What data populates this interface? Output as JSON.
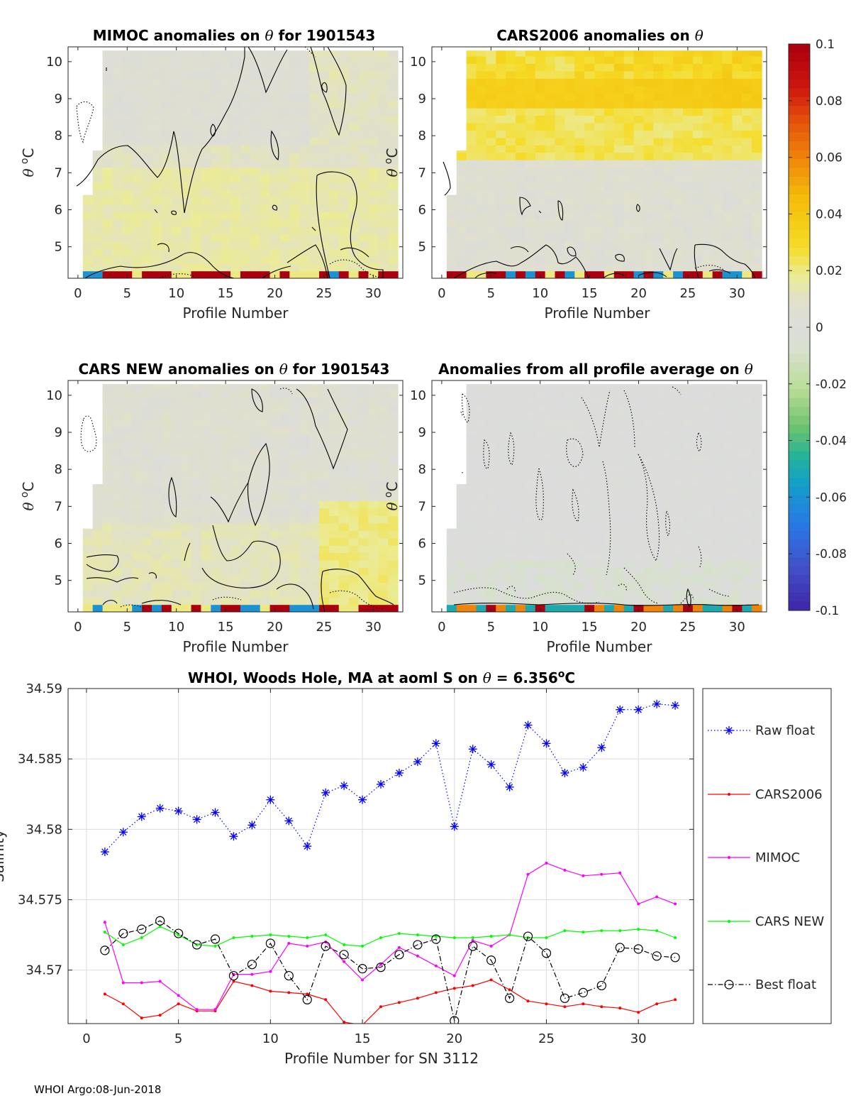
{
  "footer": "WHOI Argo:08-Jun-2018",
  "colorbar": {
    "min": -0.1,
    "max": 0.1,
    "tick_values": [
      0.1,
      0.08,
      0.06,
      0.04,
      0.02,
      0,
      -0.02,
      -0.04,
      -0.06,
      -0.08,
      -0.1
    ],
    "tick_labels": [
      "0.1",
      "0.08",
      "0.06",
      "0.04",
      "0.02",
      "0",
      "-0.02",
      "-0.04",
      "-0.06",
      "-0.08",
      "-0.1"
    ]
  },
  "panels": [
    {
      "title_pre": "MIMOC anomalies on ",
      "title_sym": "θ",
      "title_post": "  for 1901543",
      "xlabel": "Profile Number",
      "ylabel_sym": "θ",
      "ylabel_unit": "C",
      "ylabel_degree": "o",
      "xlim": [
        -1,
        33
      ],
      "ylim": [
        4.15,
        10.4
      ],
      "xticks": [
        0,
        5,
        10,
        15,
        20,
        25,
        30
      ],
      "yticks": [
        5,
        6,
        7,
        8,
        9,
        10
      ]
    },
    {
      "title_pre": "CARS2006 anomalies on ",
      "title_sym": "θ",
      "title_post": "",
      "xlabel": "Profile Number",
      "ylabel_sym": "θ",
      "ylabel_unit": "C",
      "ylabel_degree": "o",
      "xlim": [
        -1,
        33
      ],
      "ylim": [
        4.15,
        10.4
      ],
      "xticks": [
        0,
        5,
        10,
        15,
        20,
        25,
        30
      ],
      "yticks": [
        5,
        6,
        7,
        8,
        9,
        10
      ]
    },
    {
      "title_pre": "CARS NEW anomalies on ",
      "title_sym": "θ",
      "title_post": " for 1901543",
      "xlabel": "Profile Number",
      "ylabel_sym": "θ",
      "ylabel_unit": "C",
      "ylabel_degree": "o",
      "xlim": [
        -1,
        33
      ],
      "ylim": [
        4.15,
        10.4
      ],
      "xticks": [
        0,
        5,
        10,
        15,
        20,
        25,
        30
      ],
      "yticks": [
        5,
        6,
        7,
        8,
        9,
        10
      ]
    },
    {
      "title_pre": "Anomalies from all profile average on ",
      "title_sym": "θ",
      "title_post": "",
      "xlabel": "Profile Number",
      "ylabel_sym": "θ",
      "ylabel_unit": "C",
      "ylabel_degree": "o",
      "xlim": [
        -1,
        33
      ],
      "ylim": [
        4.15,
        10.4
      ],
      "xticks": [
        0,
        5,
        10,
        15,
        20,
        25,
        30
      ],
      "yticks": [
        5,
        6,
        7,
        8,
        9,
        10
      ]
    }
  ],
  "chart_data": [
    {
      "type": "heatmap",
      "title": "MIMOC anomalies on θ  for 1901543",
      "xlabel": "Profile Number",
      "ylabel": "θ °C",
      "x_range": [
        1,
        32
      ],
      "y_range": [
        4.2,
        10.3
      ],
      "colorscale_range": [
        -0.1,
        0.1
      ],
      "summary": {
        "background_anomaly": 0.01,
        "deep_layer_anomaly": 0.015,
        "bottom_band_max": 0.1
      }
    },
    {
      "type": "heatmap",
      "title": "CARS2006 anomalies on θ",
      "xlabel": "Profile Number",
      "ylabel": "θ °C",
      "x_range": [
        1,
        32
      ],
      "y_range": [
        4.2,
        10.3
      ],
      "colorscale_range": [
        -0.1,
        0.1
      ],
      "summary": {
        "upper_layer_anomaly": 0.035,
        "lower_layer_anomaly": 0.005,
        "bottom_band_max": 0.1
      }
    },
    {
      "type": "heatmap",
      "title": "CARS NEW anomalies on θ for 1901543",
      "xlabel": "Profile Number",
      "ylabel": "θ °C",
      "x_range": [
        1,
        32
      ],
      "y_range": [
        4.2,
        10.3
      ],
      "colorscale_range": [
        -0.1,
        0.1
      ],
      "summary": {
        "background_anomaly": 0.005,
        "deep_layer_anomaly": 0.012,
        "bottom_band_max": 0.1
      }
    },
    {
      "type": "heatmap",
      "title": "Anomalies from all profile average on θ",
      "xlabel": "Profile Number",
      "ylabel": "θ °C",
      "x_range": [
        1,
        32
      ],
      "y_range": [
        4.2,
        10.3
      ],
      "colorscale_range": [
        -0.1,
        0.1
      ],
      "summary": {
        "background_anomaly": 0.0,
        "bottom_band_min": -0.03,
        "bottom_band_max": 0.1
      }
    },
    {
      "type": "line",
      "title_pre": "WHOI, Woods Hole, MA at aoml S on ",
      "title_sym": "θ",
      "title_eq": " = 6.356",
      "title_deg": "o",
      "title_unit": "C",
      "title": "WHOI, Woods Hole, MA at aoml S on θ = 6.356°C",
      "xlabel": "Profile Number for SN 3112",
      "ylabel": "Salinity",
      "xlim": [
        -1,
        33
      ],
      "ylim": [
        34.5662,
        34.59
      ],
      "xticks": [
        0,
        5,
        10,
        15,
        20,
        25,
        30
      ],
      "yticks": [
        34.57,
        34.575,
        34.58,
        34.585,
        34.59
      ],
      "ytick_labels": [
        "34.57",
        "34.575",
        "34.58",
        "34.585",
        "34.59"
      ],
      "grid": true,
      "legend_position": "right",
      "x": [
        1,
        2,
        3,
        4,
        5,
        6,
        7,
        8,
        9,
        10,
        11,
        12,
        13,
        14,
        15,
        16,
        17,
        18,
        19,
        20,
        21,
        22,
        23,
        24,
        25,
        26,
        27,
        28,
        29,
        30,
        31,
        32
      ],
      "series": [
        {
          "name": "Raw float",
          "color": "#0000ff",
          "marker": "star",
          "dash": "dotted",
          "values": [
            34.5784,
            34.5798,
            34.5809,
            34.5815,
            34.5813,
            34.5807,
            34.5812,
            34.5795,
            34.5803,
            34.5821,
            34.5806,
            34.5788,
            34.5826,
            34.5831,
            34.5821,
            34.5832,
            34.584,
            34.5848,
            34.5861,
            34.5802,
            34.5857,
            34.5846,
            34.583,
            34.5874,
            34.5861,
            34.584,
            34.5844,
            34.5858,
            34.5885,
            34.5885,
            34.5889,
            34.5888
          ]
        },
        {
          "name": "CARS2006",
          "color": "#ff0000",
          "marker": "dot",
          "dash": "solid",
          "values": [
            34.5683,
            34.5676,
            34.5666,
            34.5668,
            34.5676,
            34.5671,
            34.5671,
            34.5692,
            34.5689,
            34.5685,
            34.5684,
            34.5683,
            34.5679,
            34.5663,
            34.5661,
            34.5674,
            34.5677,
            34.568,
            34.5684,
            34.5687,
            34.5689,
            34.5693,
            34.5686,
            34.5678,
            34.5676,
            34.5674,
            34.5676,
            34.5674,
            34.5673,
            34.567,
            34.5676,
            34.5679
          ]
        },
        {
          "name": "MIMOC",
          "color": "#ff00ff",
          "marker": "dot",
          "dash": "solid",
          "values": [
            34.5734,
            34.5691,
            34.5691,
            34.5692,
            34.5682,
            34.5672,
            34.5672,
            34.5697,
            34.5697,
            34.5699,
            34.5719,
            34.5717,
            34.572,
            34.5706,
            34.5693,
            34.5704,
            34.5716,
            34.571,
            34.5703,
            34.5696,
            34.5721,
            34.5717,
            34.5725,
            34.5768,
            34.5776,
            34.5771,
            34.5767,
            34.5768,
            34.5769,
            34.5747,
            34.5752,
            34.5747
          ]
        },
        {
          "name": "CARS NEW",
          "color": "#00ff00",
          "marker": "dot",
          "dash": "solid",
          "values": [
            34.5727,
            34.5718,
            34.5723,
            34.5731,
            34.5725,
            34.5718,
            34.5717,
            34.5723,
            34.5724,
            34.5725,
            34.5724,
            34.5723,
            34.5725,
            34.5718,
            34.5717,
            34.5723,
            34.5726,
            34.5725,
            34.5724,
            34.5723,
            34.5723,
            34.5724,
            34.5725,
            34.5723,
            34.5723,
            34.5728,
            34.5727,
            34.5728,
            34.5728,
            34.5729,
            34.5728,
            34.5723
          ]
        },
        {
          "name": "Best float",
          "color": "#000000",
          "marker": "circle",
          "dash": "dashdot",
          "values": [
            34.5714,
            34.5726,
            34.5729,
            34.5735,
            34.5726,
            34.5718,
            34.5722,
            34.5696,
            34.5704,
            34.5719,
            34.5696,
            34.5679,
            34.5717,
            34.5711,
            34.5701,
            34.5702,
            34.5711,
            34.5718,
            34.5722,
            34.5664,
            34.5717,
            34.5707,
            34.568,
            34.5724,
            34.5712,
            34.568,
            34.5684,
            34.5689,
            34.5716,
            34.5715,
            34.571,
            34.5709
          ]
        }
      ]
    }
  ]
}
